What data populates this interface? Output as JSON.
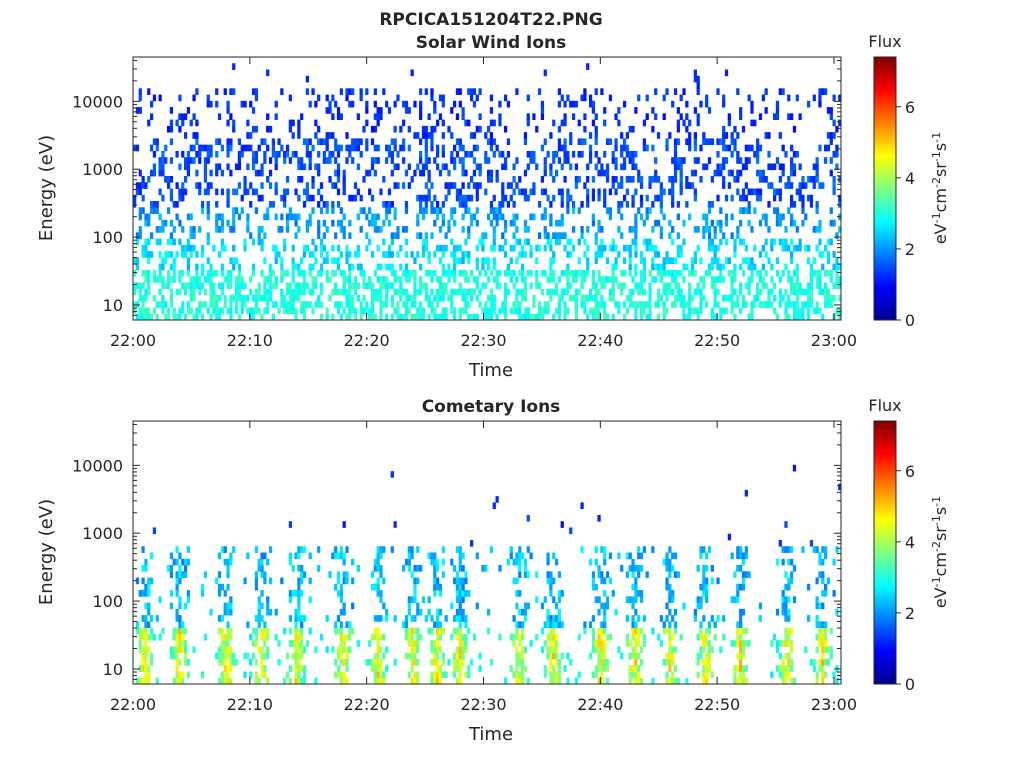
{
  "figure_title": "RPCICA151204T22.PNG",
  "colormap": [
    "#00008f",
    "#0000ff",
    "#0080ff",
    "#00ffff",
    "#80ff80",
    "#ffff00",
    "#ff8000",
    "#ff0000",
    "#800000"
  ],
  "chart_data": [
    {
      "type": "heatmap",
      "title": "Solar Wind Ions",
      "xlabel": "Time",
      "ylabel": "Energy (eV)",
      "x_ticks": [
        "22:00",
        "22:10",
        "22:20",
        "22:30",
        "22:40",
        "22:50",
        "23:00"
      ],
      "xlim": [
        "22:00",
        "23:00"
      ],
      "y_ticks": [
        "10",
        "100",
        "1000",
        "10000"
      ],
      "ylim": [
        6,
        45000
      ],
      "y_scale": "log",
      "colorbar": {
        "title": "Flux",
        "label": "eV-1cm-2sr-1s-1",
        "ticks": [
          "0",
          "2",
          "4",
          "6"
        ],
        "range": [
          0,
          7.4
        ]
      },
      "bands": [
        {
          "e_min": 6,
          "e_max": 30,
          "density": 0.48,
          "flux_min": 2.7,
          "flux_max": 3.3
        },
        {
          "e_min": 30,
          "e_max": 100,
          "density": 0.32,
          "flux_min": 2.2,
          "flux_max": 2.9
        },
        {
          "e_min": 100,
          "e_max": 300,
          "density": 0.25,
          "flux_min": 1.7,
          "flux_max": 2.4
        },
        {
          "e_min": 300,
          "e_max": 3000,
          "density": 0.3,
          "flux_min": 1.1,
          "flux_max": 1.8
        },
        {
          "e_min": 3000,
          "e_max": 15000,
          "density": 0.17,
          "flux_min": 1.0,
          "flux_max": 1.5
        },
        {
          "e_min": 15000,
          "e_max": 40000,
          "density": 0.008,
          "flux_min": 1.0,
          "flux_max": 1.3
        }
      ],
      "bursts": []
    },
    {
      "type": "heatmap",
      "title": "Cometary Ions",
      "xlabel": "Time",
      "ylabel": "Energy (eV)",
      "x_ticks": [
        "22:00",
        "22:10",
        "22:20",
        "22:30",
        "22:40",
        "22:50",
        "23:00"
      ],
      "xlim": [
        "22:00",
        "23:00"
      ],
      "y_ticks": [
        "10",
        "100",
        "1000",
        "10000"
      ],
      "ylim": [
        6,
        45000
      ],
      "y_scale": "log",
      "colorbar": {
        "title": "Flux",
        "label": "eV-1cm-2sr-1s-1",
        "ticks": [
          "0",
          "2",
          "4",
          "6"
        ],
        "range": [
          0,
          7.4
        ]
      },
      "bands": [
        {
          "e_min": 6,
          "e_max": 40,
          "density": 0.05,
          "flux_min": 2.6,
          "flux_max": 3.3
        },
        {
          "e_min": 40,
          "e_max": 600,
          "density": 0.035,
          "flux_min": 1.8,
          "flux_max": 2.8
        },
        {
          "e_min": 600,
          "e_max": 10000,
          "density": 0.006,
          "flux_min": 1.0,
          "flux_max": 1.5
        }
      ],
      "bursts": [
        "22:01",
        "22:04",
        "22:08",
        "22:11",
        "22:14",
        "22:18",
        "22:21",
        "22:24",
        "22:26",
        "22:28",
        "22:33",
        "22:36",
        "22:40",
        "22:43",
        "22:46",
        "22:49",
        "22:52",
        "22:56",
        "22:59"
      ]
    }
  ]
}
